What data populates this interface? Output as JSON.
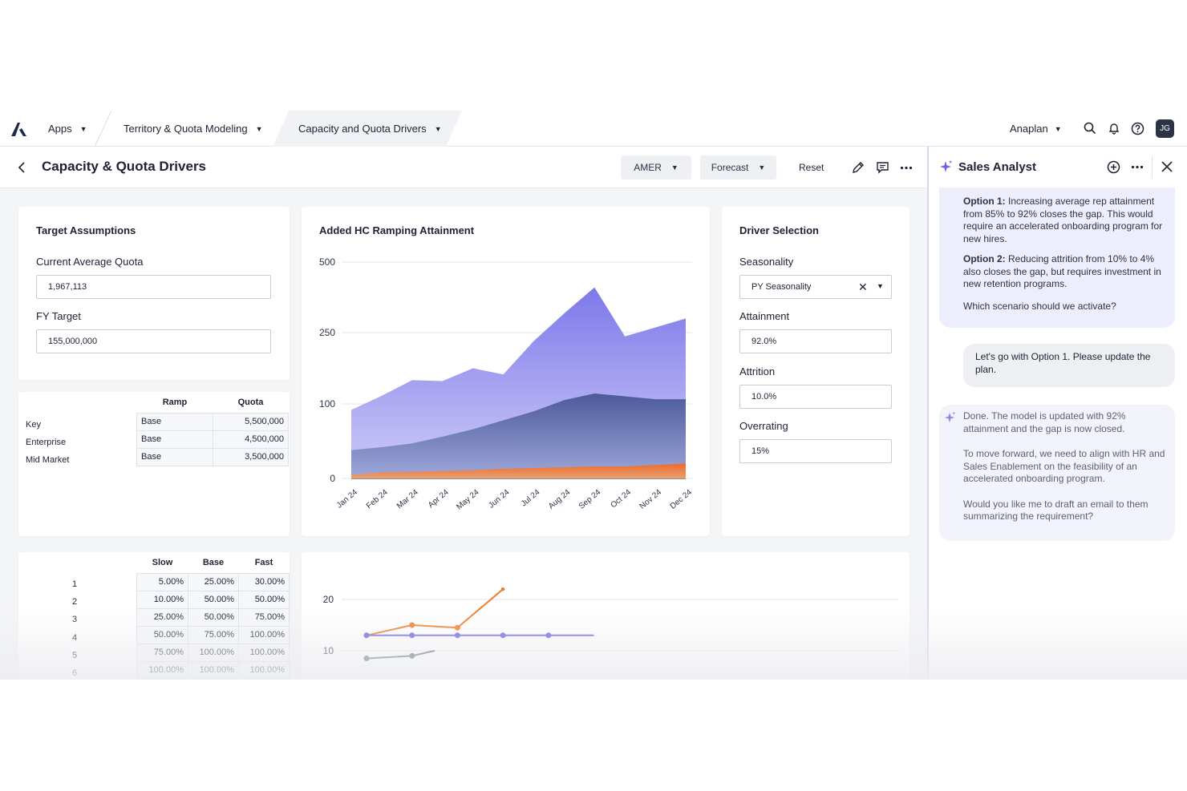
{
  "topnav": {
    "apps_label": "Apps",
    "crumb1_label": "Territory & Quota Modeling",
    "crumb2_label": "Capacity and Quota Drivers",
    "workspace_label": "Anaplan",
    "avatar_initials": "JG"
  },
  "header": {
    "title": "Capacity & Quota Drivers",
    "region_label": "AMER",
    "version_label": "Forecast",
    "reset_label": "Reset"
  },
  "target_assumptions": {
    "title": "Target Assumptions",
    "quota_label": "Current Average Quota",
    "quota_value": "1,967,113",
    "fy_label": "FY Target",
    "fy_value": "155,000,000"
  },
  "segments": {
    "headers": [
      "Ramp",
      "Quota"
    ],
    "rows": [
      {
        "label": "Key",
        "ramp": "Base",
        "quota": "5,500,000"
      },
      {
        "label": "Enterprise",
        "ramp": "Base",
        "quota": "4,500,000"
      },
      {
        "label": "Mid Market",
        "ramp": "Base",
        "quota": "3,500,000"
      }
    ]
  },
  "ramp_table": {
    "headers": [
      "Slow",
      "Base",
      "Fast"
    ],
    "rows": [
      {
        "label": "1",
        "slow": "5.00%",
        "base": "25.00%",
        "fast": "30.00%"
      },
      {
        "label": "2",
        "slow": "10.00%",
        "base": "50.00%",
        "fast": "50.00%"
      },
      {
        "label": "3",
        "slow": "25.00%",
        "base": "50.00%",
        "fast": "75.00%"
      },
      {
        "label": "4",
        "slow": "50.00%",
        "base": "75.00%",
        "fast": "100.00%"
      },
      {
        "label": "5",
        "slow": "75.00%",
        "base": "100.00%",
        "fast": "100.00%"
      },
      {
        "label": "6",
        "slow": "100.00%",
        "base": "100.00%",
        "fast": "100.00%"
      }
    ]
  },
  "driver_selection": {
    "title": "Driver Selection",
    "seasonality_label": "Seasonality",
    "seasonality_value": "PY Seasonality",
    "attainment_label": "Attainment",
    "attainment_value": "92.0%",
    "attrition_label": "Attrition",
    "attrition_value": "10.0%",
    "overrating_label": "Overrating",
    "overrating_value": "15%"
  },
  "chart_data": [
    {
      "type": "area",
      "title": "Added HC Ramping Attainment",
      "categories": [
        "Jan 24",
        "Feb 24",
        "Mar 24",
        "Apr 24",
        "May 24",
        "Jun 24",
        "Jul 24",
        "Aug 24",
        "Sep 24",
        "Oct 24",
        "Nov 24",
        "Dec 24"
      ],
      "y_ticks": [
        "0",
        "100",
        "250",
        "500"
      ],
      "colors": {
        "top": "#7d78ea",
        "middle": "#4d5a9a",
        "bottom": "#ef6a2a"
      },
      "series": [
        {
          "values": [
            5,
            8,
            9,
            10,
            11,
            13,
            14,
            15,
            16,
            16,
            18,
            20
          ]
        },
        {
          "values": [
            38,
            42,
            47,
            56,
            66,
            78,
            90,
            108,
            122,
            116,
            110,
            110
          ]
        },
        {
          "values": [
            92,
            117,
            150,
            148,
            175,
            162,
            232,
            318,
            410,
            242,
            268,
            300
          ]
        }
      ]
    },
    {
      "type": "line",
      "y_ticks": [
        "10",
        "20"
      ],
      "colors": {
        "orange": "#ef7d2a",
        "purple": "#6b63de",
        "gray": "#5f6873"
      },
      "series": [
        {
          "values": [
            13,
            15,
            14.5,
            22
          ]
        },
        {
          "values": [
            13,
            13,
            13,
            13,
            13,
            13
          ]
        },
        {
          "values": [
            8.5,
            9,
            10
          ]
        }
      ]
    }
  ],
  "assistant": {
    "title": "Sales Analyst",
    "msg1_opt1_label": "Option 1:",
    "msg1_opt1_text": " Increasing average rep attainment from 85% to 92% closes the gap. This would require an accelerated onboarding program for new hires.",
    "msg1_opt2_label": "Option 2:",
    "msg1_opt2_text": " Reducing attrition from 10% to 4% also closes the gap, but requires investment in new retention programs.",
    "msg1_question": "Which scenario should we activate?",
    "user_msg": "Let's go with Option 1. Please update the plan.",
    "msg2_p1": "Done. The model is updated with 92% attainment and the gap is now closed.",
    "msg2_p2": "To move forward, we need to align with HR and Sales Enablement on the feasibility of an accelerated onboarding program.",
    "msg2_p3": "Would you like me to draft an email to them summarizing the requirement?"
  }
}
